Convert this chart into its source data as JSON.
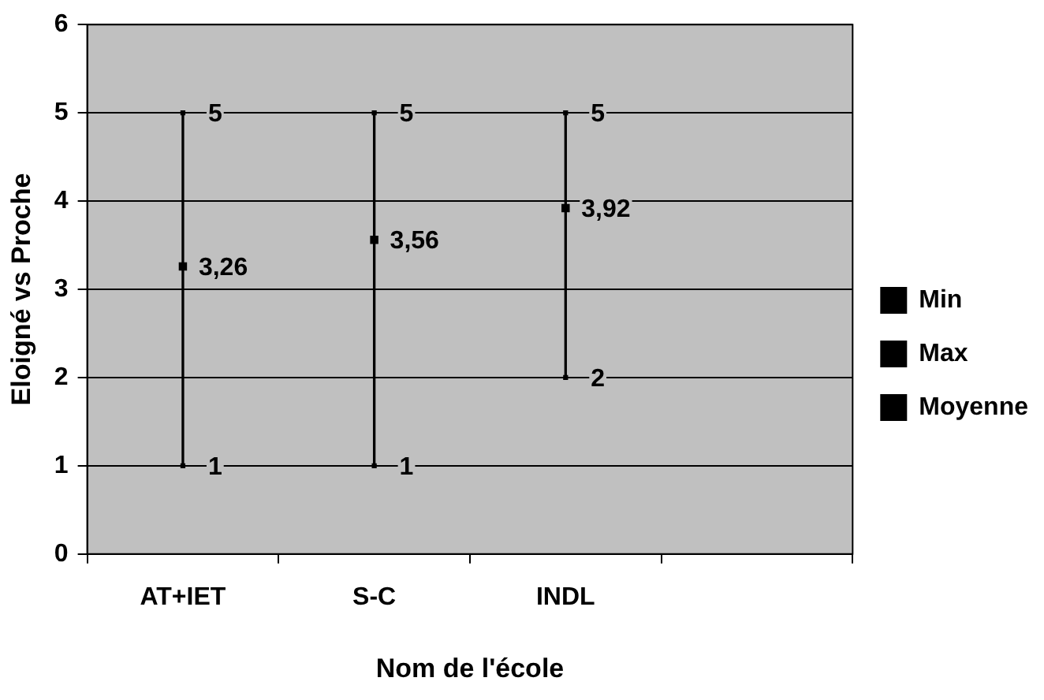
{
  "chart_data": {
    "type": "scatter",
    "xlabel": "Nom de l'école",
    "ylabel": "Eloigné vs Proche",
    "categories": [
      "AT+IET",
      "S-C",
      "INDL",
      null
    ],
    "series": [
      {
        "type": "bar",
        "color": "#000000",
        "base": [
          1,
          1,
          2,
          null
        ],
        "values": [
          4,
          4,
          3,
          null
        ]
      },
      {
        "name": "Min",
        "marker": "square",
        "color": "#000000",
        "values": [
          1,
          1,
          2,
          null
        ],
        "value_labels": [
          "1",
          "1",
          "2",
          null
        ]
      },
      {
        "name": "Max",
        "marker": "square",
        "color": "#000000",
        "values": [
          5,
          5,
          5,
          null
        ],
        "value_labels": [
          "5",
          "5",
          "5",
          null
        ]
      },
      {
        "name": "Moyenne",
        "marker": "square",
        "color": "#000000",
        "values": [
          3.26,
          3.56,
          3.92,
          null
        ],
        "value_labels": [
          "3,26",
          "3,56",
          "3,92",
          null
        ]
      }
    ],
    "ylim": [
      0,
      6
    ],
    "yticks": [
      0,
      1,
      2,
      3,
      4,
      5,
      6
    ],
    "grid": "y",
    "legend": "right"
  }
}
